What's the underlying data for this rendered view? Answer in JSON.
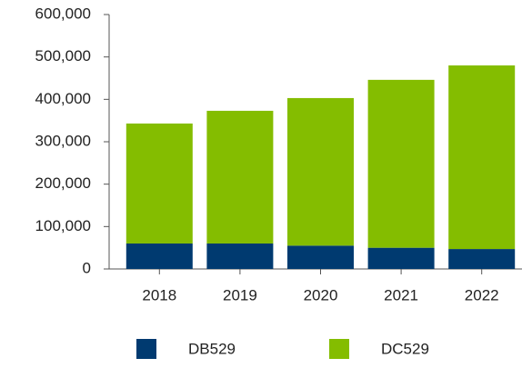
{
  "chart_data": {
    "type": "bar",
    "stacked": true,
    "categories": [
      "2018",
      "2019",
      "2020",
      "2021",
      "2022"
    ],
    "series": [
      {
        "name": "DB529",
        "color": "#003a70",
        "values": [
          60000,
          60000,
          55000,
          50000,
          47000
        ]
      },
      {
        "name": "DC529",
        "color": "#84bd00",
        "values": [
          283000,
          313000,
          348000,
          396000,
          433000
        ]
      }
    ],
    "ylim": [
      0,
      600000
    ],
    "yticks": [
      0,
      {
        "value": 100000,
        "label": "100,000"
      },
      {
        "value": 200000,
        "label": "200,000"
      },
      {
        "value": 300000,
        "label": "300,000"
      },
      {
        "value": 400000,
        "label": "400,000"
      },
      {
        "value": 500000,
        "label": "500,000"
      },
      {
        "value": 600000,
        "label": "600,000"
      }
    ],
    "legend": "bottom"
  }
}
